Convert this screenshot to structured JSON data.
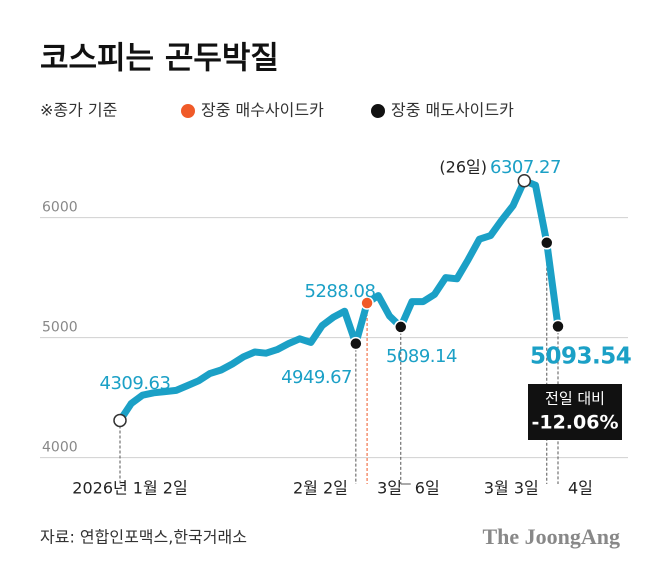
{
  "chart_data": {
    "type": "line",
    "title": "코스피는 곤두박질",
    "note": "※종가 기준",
    "legend": [
      {
        "name": "장중 매수사이드카",
        "color": "#f05a28",
        "points": [
          22
        ]
      },
      {
        "name": "장중 매도사이드카",
        "color": "#111111",
        "points": [
          21,
          25,
          38,
          39
        ]
      }
    ],
    "open_points": [
      0,
      36
    ],
    "labeled_points": [
      0,
      21,
      22,
      25,
      36,
      39
    ],
    "categories": [
      "2026년 1월 2일",
      null,
      null,
      null,
      null,
      null,
      null,
      null,
      null,
      null,
      null,
      null,
      null,
      null,
      null,
      null,
      null,
      null,
      null,
      null,
      null,
      "2월 2일",
      "3일",
      null,
      null,
      "6일",
      null,
      null,
      null,
      null,
      null,
      null,
      null,
      null,
      null,
      null,
      null,
      null,
      "3월 3일",
      "4일"
    ],
    "series": [
      {
        "color": "#1ba0c6",
        "values": [
          4309.63,
          4450,
          4520,
          4540,
          4550,
          4560,
          4600,
          4640,
          4700,
          4730,
          4780,
          4840,
          4880,
          4870,
          4900,
          4950,
          4990,
          4960,
          5100,
          5170,
          5220,
          4949.67,
          5288.08,
          5350,
          5180,
          5089.14,
          5300,
          5300,
          5360,
          5500,
          5490,
          5650,
          5820,
          5850,
          5980,
          6100,
          6307.27,
          6270,
          5790,
          5093.54
        ]
      }
    ],
    "annotations": {
      "peak_day": "(26일)",
      "change_label": "전일 대비",
      "change_value": "-12.06%"
    },
    "ylim": [
      3930,
      6480
    ],
    "yticks": [
      4000,
      5000,
      6000
    ],
    "grid": true,
    "source": "자료: 연합인포맥스,한국거래소",
    "brand": "The JoongAng"
  }
}
